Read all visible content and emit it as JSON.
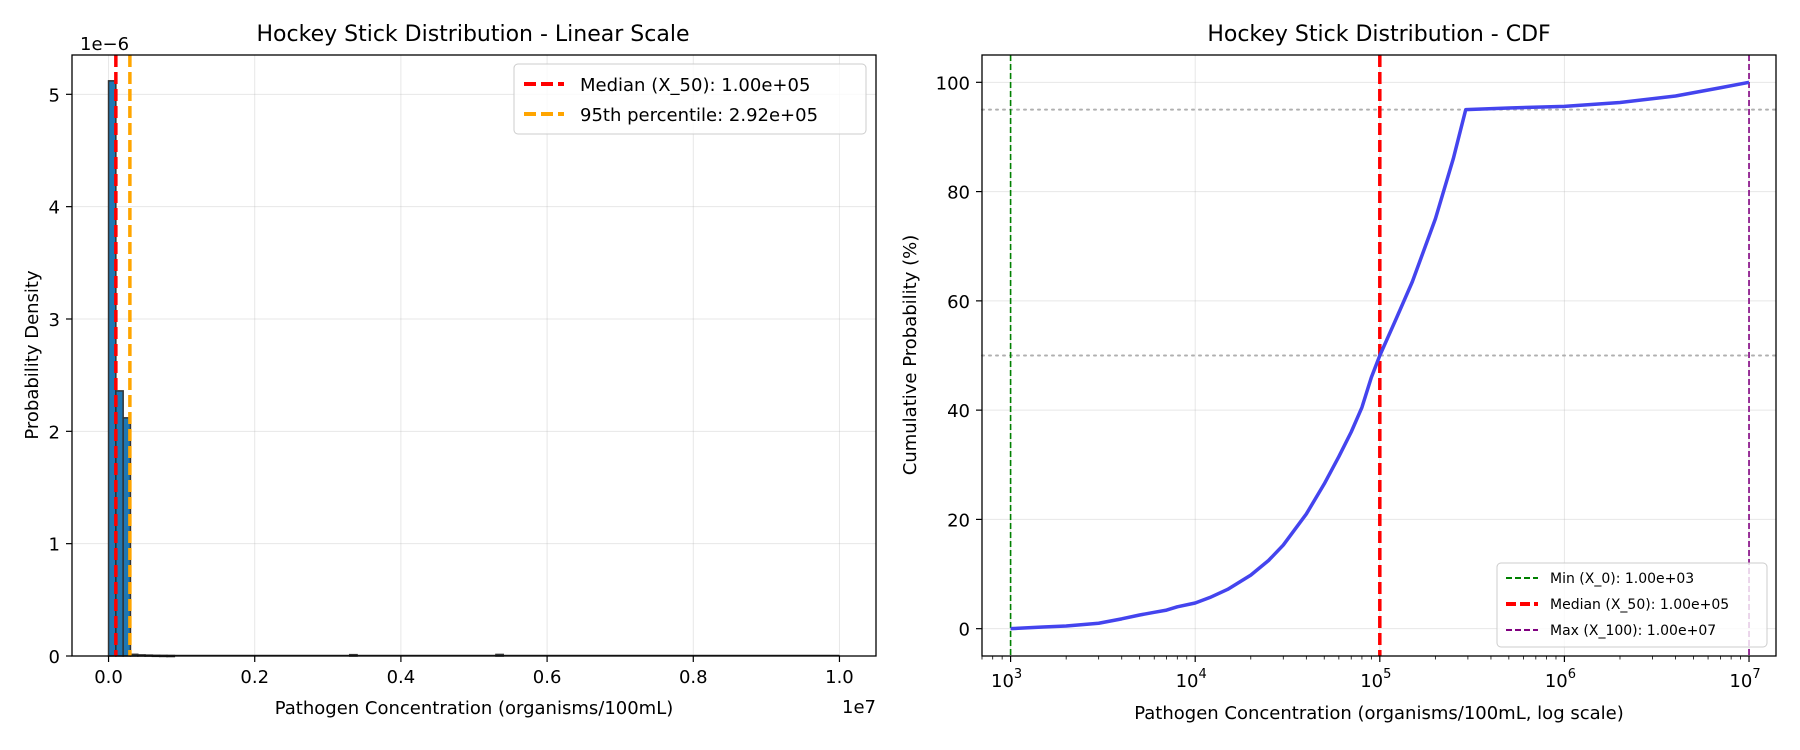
{
  "chart_data": [
    {
      "type": "bar",
      "title": "Hockey Stick Distribution - Linear Scale",
      "xlabel": "Pathogen Concentration (organisms/100mL)",
      "ylabel": "Probability Density",
      "x_offset_label": "1e7",
      "y_offset_label": "1e−6",
      "xlim": [
        -0.05,
        1.05
      ],
      "ylim": [
        0,
        5.35
      ],
      "x_ticks": [
        0.0,
        0.2,
        0.4,
        0.6,
        0.8,
        1.0
      ],
      "x_tick_labels": [
        "0.0",
        "0.2",
        "0.4",
        "0.6",
        "0.8",
        "1.0"
      ],
      "y_ticks": [
        0,
        1,
        2,
        3,
        4,
        5
      ],
      "y_tick_labels": [
        "0",
        "1",
        "2",
        "3",
        "4",
        "5"
      ],
      "grid": true,
      "bar_color": "#1f77b4",
      "bar_edge_color": "#333333",
      "bin_width": 0.01,
      "bins": [
        {
          "x0": 0.0,
          "value": 5.12
        },
        {
          "x0": 0.01,
          "value": 2.36
        },
        {
          "x0": 0.02,
          "value": 2.12
        },
        {
          "x0": 0.03,
          "value": 0.015
        },
        {
          "x0": 0.04,
          "value": 0.01
        },
        {
          "x0": 0.05,
          "value": 0.008
        },
        {
          "x0": 0.06,
          "value": 0.006
        },
        {
          "x0": 0.07,
          "value": 0.005
        },
        {
          "x0": 0.08,
          "value": 0.004
        },
        {
          "x0": 0.33,
          "value": 0.012
        },
        {
          "x0": 0.53,
          "value": 0.014
        }
      ],
      "baseline_extent": [
        0.0,
        1.0
      ],
      "reference_lines": [
        {
          "label": "Median (X_50): 1.00e+05",
          "x": 0.01,
          "color": "#ff0000"
        },
        {
          "label": "95th percentile: 2.92e+05",
          "x": 0.0292,
          "color": "#ffa500"
        }
      ],
      "legend_position": "upper right"
    },
    {
      "type": "line",
      "title": "Hockey Stick Distribution - CDF",
      "xlabel": "Pathogen Concentration (organisms/100mL, log scale)",
      "ylabel": "Cumulative Probability (%)",
      "x_scale": "log",
      "xlim": [
        700,
        14000000
      ],
      "ylim": [
        -5,
        105
      ],
      "x_ticks": [
        {
          "value": 1000,
          "base": "10",
          "exp": "3"
        },
        {
          "value": 10000,
          "base": "10",
          "exp": "4"
        },
        {
          "value": 100000,
          "base": "10",
          "exp": "5"
        },
        {
          "value": 1000000,
          "base": "10",
          "exp": "6"
        },
        {
          "value": 10000000,
          "base": "10",
          "exp": "7"
        }
      ],
      "y_ticks": [
        0,
        20,
        40,
        60,
        80,
        100
      ],
      "y_tick_labels": [
        "0",
        "20",
        "40",
        "60",
        "80",
        "100"
      ],
      "grid": true,
      "series": [
        {
          "color": "#4444ee",
          "points": [
            [
              1000,
              0
            ],
            [
              1500,
              0.3
            ],
            [
              2000,
              0.5
            ],
            [
              3000,
              1.0
            ],
            [
              4000,
              1.8
            ],
            [
              5000,
              2.5
            ],
            [
              6000,
              3.0
            ],
            [
              7000,
              3.4
            ],
            [
              8000,
              4.0
            ],
            [
              10000,
              4.7
            ],
            [
              12000,
              5.7
            ],
            [
              15000,
              7.2
            ],
            [
              20000,
              9.8
            ],
            [
              25000,
              12.5
            ],
            [
              30000,
              15.3
            ],
            [
              40000,
              21.0
            ],
            [
              50000,
              26.5
            ],
            [
              60000,
              31.5
            ],
            [
              70000,
              36.0
            ],
            [
              80000,
              40.5
            ],
            [
              90000,
              46.0
            ],
            [
              100000,
              50.0
            ],
            [
              120000,
              56.0
            ],
            [
              150000,
              63.5
            ],
            [
              200000,
              75.0
            ],
            [
              250000,
              86.0
            ],
            [
              292000,
              95.0
            ],
            [
              500000,
              95.3
            ],
            [
              1000000,
              95.6
            ],
            [
              2000000,
              96.3
            ],
            [
              4000000,
              97.5
            ],
            [
              7000000,
              99.0
            ],
            [
              10000000,
              100
            ]
          ]
        }
      ],
      "horizontal_reference_lines": [
        {
          "y": 50,
          "color": "#b0b0b0"
        },
        {
          "y": 95,
          "color": "#b0b0b0"
        }
      ],
      "reference_lines": [
        {
          "label": "Min (X_0): 1.00e+03",
          "x": 1000,
          "color": "#008000"
        },
        {
          "label": "Median (X_50): 1.00e+05",
          "x": 100000,
          "color": "#ff0000"
        },
        {
          "label": "Max (X_100): 1.00e+07",
          "x": 10000000,
          "color": "#800080"
        }
      ],
      "legend_position": "lower right"
    }
  ]
}
